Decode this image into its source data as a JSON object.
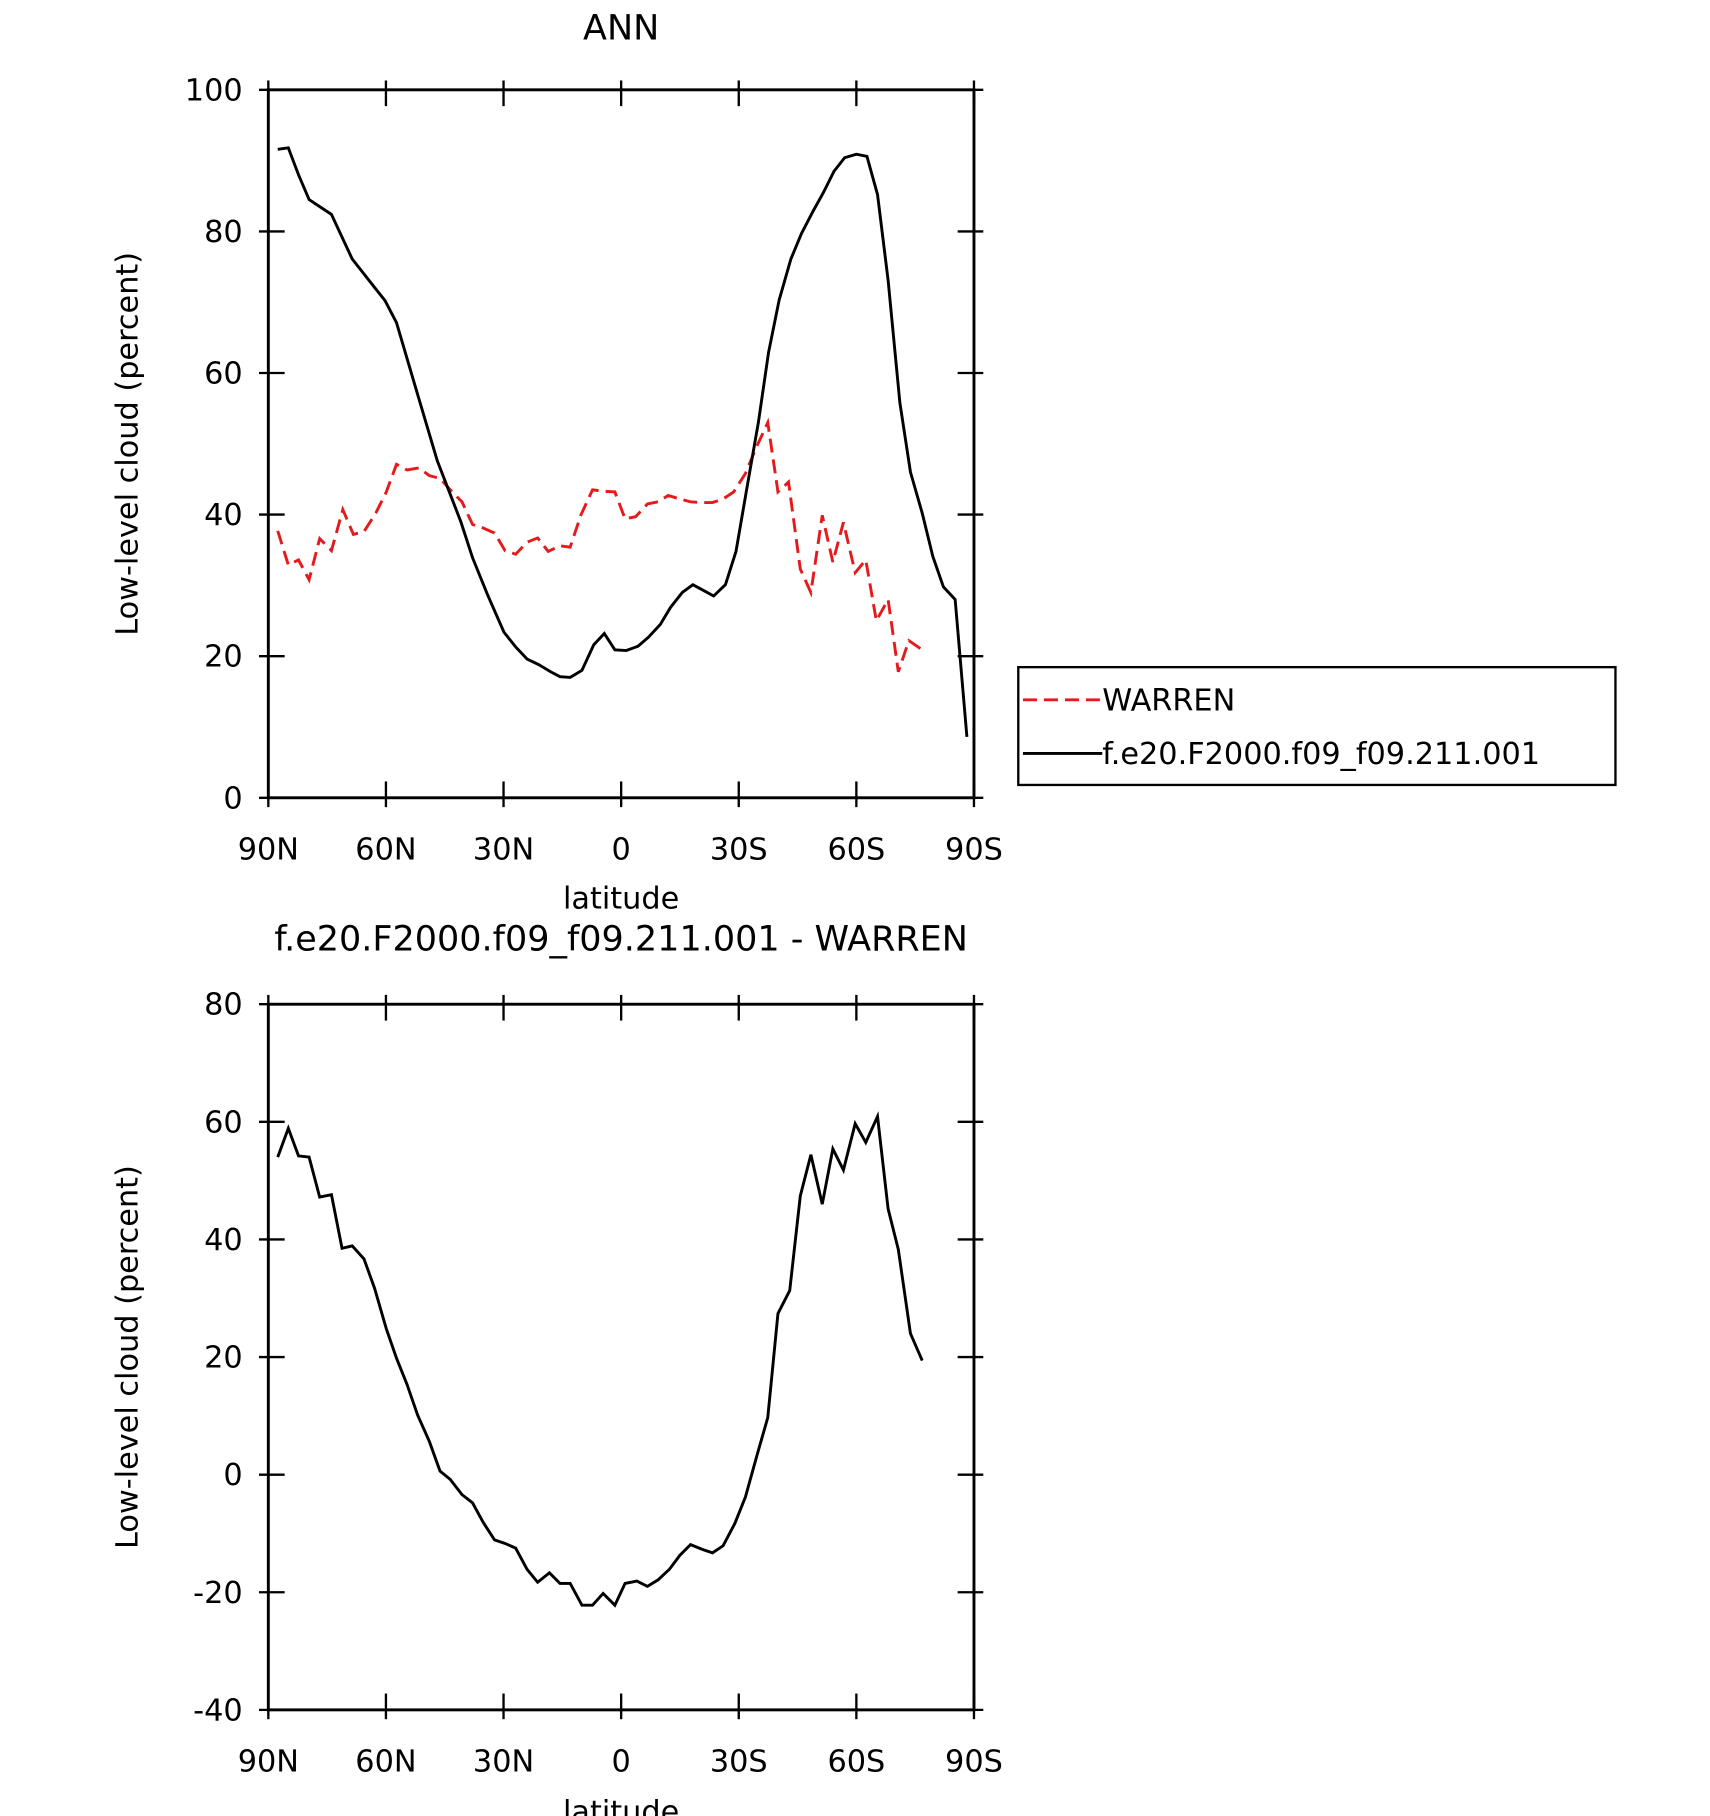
{
  "chart_data": [
    {
      "type": "line",
      "title": "ANN",
      "xlabel": "latitude",
      "ylabel": "Low-level cloud (percent)",
      "xlim": [
        90,
        -90
      ],
      "xticks": [
        {
          "value": 90,
          "label": "90N"
        },
        {
          "value": 60,
          "label": "60N"
        },
        {
          "value": 30,
          "label": "30N"
        },
        0,
        {
          "value": -30,
          "label": "30S"
        },
        {
          "value": -60,
          "label": "60S"
        },
        {
          "value": -90,
          "label": "90S"
        }
      ],
      "ylim": [
        0,
        100
      ],
      "yticks": [
        0,
        20,
        40,
        60,
        80,
        100
      ],
      "legend": "right",
      "series": [
        {
          "name": "WARREN",
          "color": "#e41a1c",
          "style": "dashed",
          "x": [
            87.6,
            84.9,
            82.3,
            79.6,
            76.9,
            73.9,
            71.0,
            68.3,
            65.6,
            62.6,
            59.9,
            57.3,
            54.6,
            51.6,
            48.9,
            46.2,
            43.6,
            40.6,
            37.9,
            35.2,
            32.3,
            29.6,
            26.9,
            24.0,
            21.3,
            18.6,
            15.6,
            13.0,
            10.3,
            7.3,
            4.6,
            1.6,
            -1.0,
            -3.7,
            -6.7,
            -9.4,
            -12.0,
            -15.0,
            -17.7,
            -20.4,
            -23.3,
            -26.0,
            -28.7,
            -31.7,
            -34.4,
            -37.4,
            -40.0,
            -42.7,
            -45.7,
            -48.4,
            -51.3,
            -54.0,
            -56.7,
            -59.7,
            -62.4,
            -65.1,
            -68.1,
            -70.7,
            -73.4,
            -76.8
          ],
          "values": [
            37.7,
            32.9,
            33.6,
            30.8,
            36.6,
            34.9,
            40.7,
            37.2,
            37.6,
            40.2,
            43.2,
            47.1,
            46.3,
            46.6,
            45.5,
            45.1,
            43.5,
            41.8,
            38.6,
            38.1,
            37.4,
            34.9,
            34.4,
            36.1,
            36.7,
            34.8,
            35.6,
            35.4,
            39.9,
            43.5,
            43.3,
            43.2,
            39.4,
            39.7,
            41.5,
            41.8,
            42.7,
            42.2,
            41.8,
            41.7,
            41.7,
            42.2,
            43.2,
            45.8,
            49.4,
            53.0,
            43.2,
            44.6,
            32.3,
            29.0,
            39.9,
            33.3,
            38.9,
            31.8,
            33.6,
            25.0,
            28.0,
            17.8,
            22.2,
            20.9
          ]
        },
        {
          "name": "f.e20.F2000.f09_f09.211.001",
          "color": "#000000",
          "style": "solid",
          "x": [
            87.6,
            84.9,
            82.3,
            79.6,
            76.9,
            73.9,
            68.6,
            63.2,
            60.2,
            57.3,
            52.2,
            46.9,
            40.9,
            37.9,
            34.1,
            29.9,
            26.9,
            24.0,
            21.0,
            18.0,
            15.6,
            13.0,
            10.0,
            7.0,
            4.3,
            1.6,
            -1.3,
            -4.3,
            -7.0,
            -10.0,
            -12.6,
            -15.6,
            -18.3,
            -21.3,
            -23.6,
            -26.6,
            -29.3,
            -32.0,
            -35.0,
            -37.6,
            -40.3,
            -43.3,
            -46.0,
            -49.0,
            -51.6,
            -54.3,
            -57.0,
            -60.0,
            -62.7,
            -65.4,
            -68.1,
            -71.1,
            -73.8,
            -76.8,
            -79.5,
            -82.2,
            -85.2,
            -88.2
          ],
          "values": [
            91.6,
            91.8,
            88.0,
            84.5,
            83.5,
            82.4,
            76.1,
            72.3,
            70.2,
            67.1,
            57.5,
            47.6,
            39.0,
            33.9,
            28.7,
            23.4,
            21.3,
            19.6,
            18.8,
            17.8,
            17.1,
            17.0,
            18.0,
            21.6,
            23.2,
            20.9,
            20.8,
            21.4,
            22.7,
            24.5,
            26.9,
            29.0,
            30.1,
            29.2,
            28.5,
            30.1,
            34.8,
            43.5,
            53.0,
            62.9,
            70.3,
            76.1,
            79.7,
            82.9,
            85.5,
            88.5,
            90.4,
            90.9,
            90.6,
            85.2,
            73.1,
            55.8,
            46.0,
            40.2,
            34.1,
            29.8,
            28.0,
            8.6
          ]
        }
      ]
    },
    {
      "type": "line",
      "title": "f.e20.F2000.f09_f09.211.001 - WARREN",
      "xlabel": "latitude",
      "ylabel": "Low-level cloud (percent)",
      "xlim": [
        90,
        -90
      ],
      "xticks": [
        {
          "value": 90,
          "label": "90N"
        },
        {
          "value": 60,
          "label": "60N"
        },
        {
          "value": 30,
          "label": "30N"
        },
        0,
        {
          "value": -30,
          "label": "30S"
        },
        {
          "value": -60,
          "label": "60S"
        },
        {
          "value": -90,
          "label": "90S"
        }
      ],
      "ylim": [
        -40,
        80
      ],
      "yticks": [
        -40,
        -20,
        0,
        20,
        40,
        60,
        80
      ],
      "series": [
        {
          "color": "#000000",
          "style": "solid",
          "x": [
            87.6,
            84.9,
            82.3,
            79.6,
            76.9,
            73.9,
            71.2,
            68.6,
            65.6,
            62.9,
            59.9,
            57.3,
            54.6,
            51.9,
            48.9,
            46.2,
            43.6,
            40.6,
            37.9,
            35.2,
            32.3,
            29.6,
            26.9,
            24.0,
            21.3,
            18.3,
            15.6,
            13.0,
            10.0,
            7.3,
            4.6,
            1.6,
            -1.0,
            -4.0,
            -6.7,
            -9.4,
            -12.3,
            -15.0,
            -17.7,
            -20.7,
            -23.3,
            -26.0,
            -29.0,
            -31.7,
            -34.7,
            -37.4,
            -40.0,
            -43.0,
            -45.7,
            -48.4,
            -51.3,
            -54.0,
            -56.7,
            -59.7,
            -62.4,
            -65.4,
            -68.1,
            -70.7,
            -73.8,
            -76.8
          ],
          "values": [
            54.0,
            58.9,
            54.2,
            54.0,
            47.2,
            47.6,
            38.5,
            38.9,
            36.7,
            31.7,
            24.8,
            19.8,
            15.3,
            10.1,
            5.6,
            0.6,
            -0.8,
            -3.4,
            -4.8,
            -8.1,
            -11.1,
            -11.7,
            -12.5,
            -16.1,
            -18.3,
            -16.7,
            -18.5,
            -18.5,
            -22.2,
            -22.2,
            -20.2,
            -22.2,
            -18.5,
            -18.1,
            -19.0,
            -17.9,
            -16.1,
            -13.7,
            -11.9,
            -12.7,
            -13.3,
            -12.1,
            -8.3,
            -3.8,
            3.4,
            9.7,
            27.4,
            31.3,
            47.4,
            54.4,
            46.0,
            55.4,
            51.8,
            59.7,
            56.5,
            60.9,
            45.2,
            38.3,
            24.0,
            19.4
          ]
        }
      ]
    }
  ]
}
